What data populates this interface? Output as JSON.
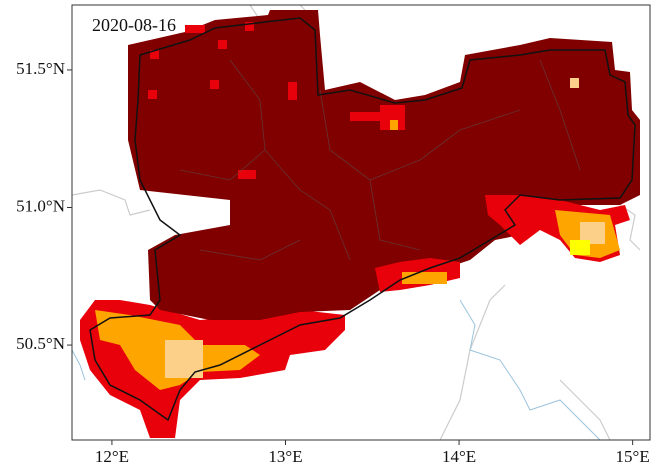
{
  "map": {
    "date": "2020-08-16",
    "xlim": [
      11.77,
      15.1
    ],
    "ylim": [
      50.155,
      51.736
    ],
    "xticks": [
      {
        "value": 12,
        "label": "12°E"
      },
      {
        "value": 13,
        "label": "13°E"
      },
      {
        "value": 14,
        "label": "14°E"
      },
      {
        "value": 15,
        "label": "15°E"
      }
    ],
    "yticks": [
      {
        "value": 50.5,
        "label": "50.5°N"
      },
      {
        "value": 51.0,
        "label": "51.0°N"
      },
      {
        "value": 51.5,
        "label": "51.5°N"
      }
    ]
  }
}
